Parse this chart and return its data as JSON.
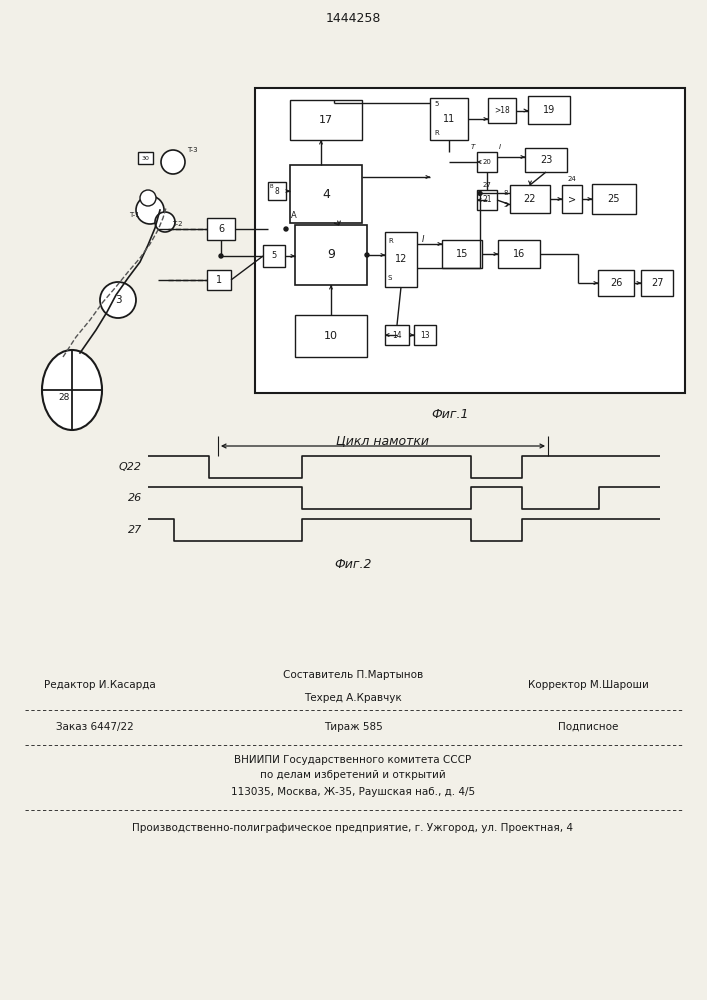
{
  "title": "1444258",
  "fig1_caption": "Фиг.1",
  "fig2_caption": "Фиг.2",
  "winding_cycle_label": "Цикл намотки",
  "footer_line1_left": "Редактор И.Касарда",
  "footer_line1_center_top": "Составитель П.Мартынов",
  "footer_line1_center_bot": "Техред А.Кравчук",
  "footer_line1_right": "Корректор М.Шароши",
  "footer_line2_left": "Заказ 6447/22",
  "footer_line2_center": "Тираж 585",
  "footer_line2_right": "Подписное",
  "footer_line3": "ВНИИПИ Государственного комитета СССР",
  "footer_line4": "по делам избретений и открытий",
  "footer_line5": "113035, Москва, Ж-35, Раушская наб., д. 4/5",
  "footer_line6": "Производственно-полиграфическое предприятие, г. Ужгород, ул. Проектная, 4",
  "bg_color": "#f2f0e8",
  "line_color": "#1a1a1a"
}
